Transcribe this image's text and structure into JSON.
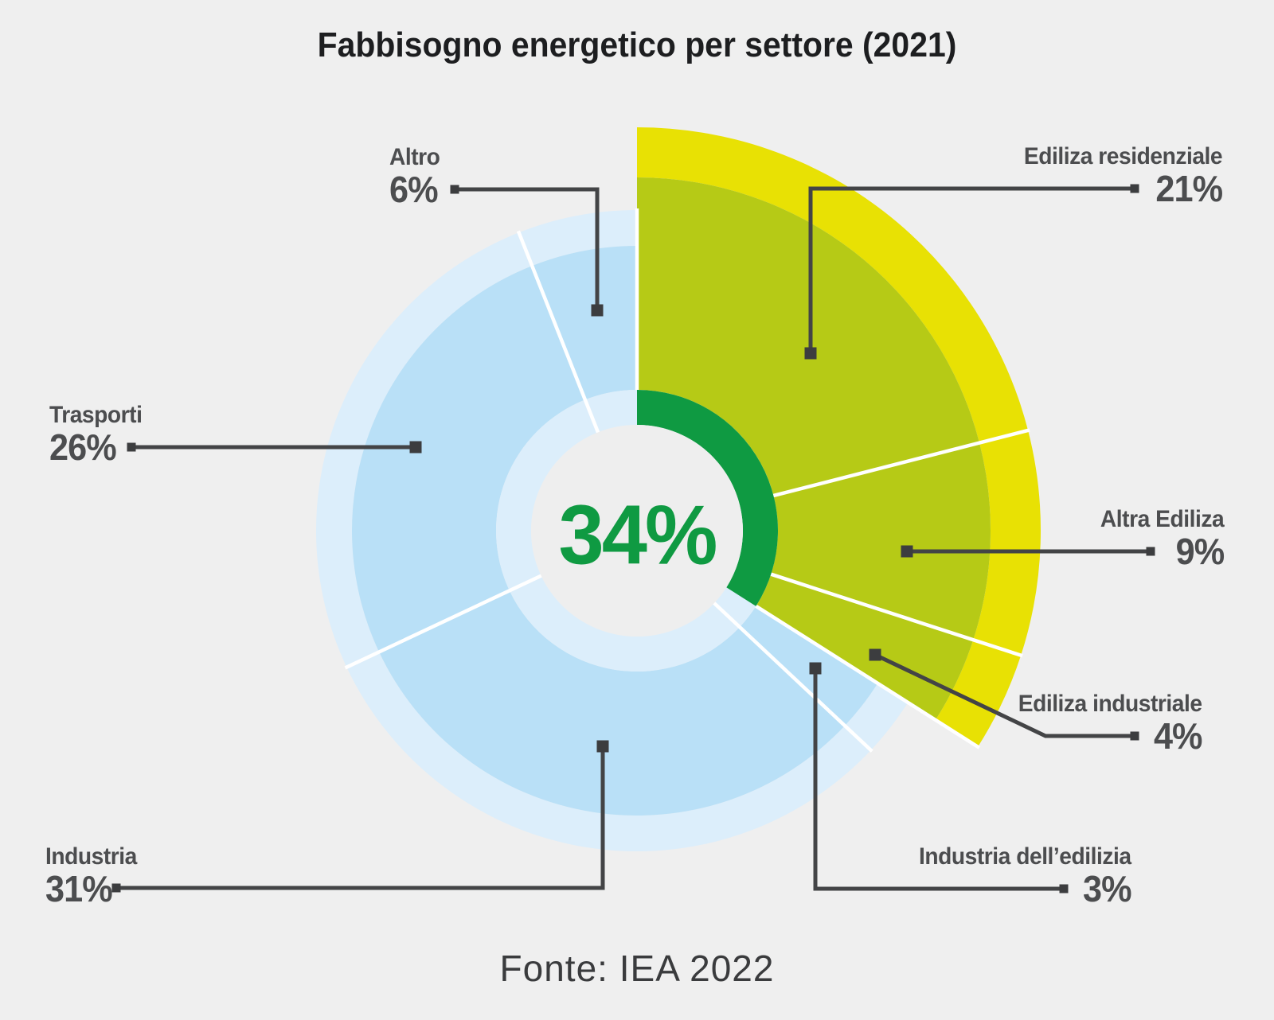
{
  "title": "Fabbisogno energetico per settore (2021)",
  "source": "Fonte: IEA 2022",
  "colors": {
    "background": "#efefef",
    "center_circle": "#eeeeee",
    "highlight_green": "#0f9a42",
    "edilizia_mid": "#b6ca16",
    "edilizia_outer": "#e8e104",
    "altri_mid": "#b9e0f7",
    "altri_pale": "#dceefb",
    "separator": "#ffffff",
    "title_text": "#1d1e20",
    "label_text": "#4c4d4f",
    "connector": "#434446",
    "source_text": "#3a3b3d"
  },
  "chart_data": {
    "type": "pie",
    "subtype": "sunburst-donut",
    "title": "Fabbisogno energetico per settore (2021)",
    "units": "%",
    "start_angle_deg": 0,
    "direction": "clockwise",
    "segments": [
      {
        "label": "Ediliza residenziale",
        "value": 21,
        "pct_label": "21%",
        "family": "edilizia"
      },
      {
        "label": "Altra Ediliza",
        "value": 9,
        "pct_label": "9%",
        "family": "edilizia"
      },
      {
        "label": "Ediliza industriale",
        "value": 4,
        "pct_label": "4%",
        "family": "edilizia"
      },
      {
        "label": "Industria dell’edilizia",
        "value": 3,
        "pct_label": "3%",
        "family": "altri"
      },
      {
        "label": "Industria",
        "value": 31,
        "pct_label": "31%",
        "family": "altri"
      },
      {
        "label": "Trasporti",
        "value": 26,
        "pct_label": "26%",
        "family": "altri"
      },
      {
        "label": "Altro",
        "value": 6,
        "pct_label": "6%",
        "family": "altri"
      }
    ],
    "highlight": {
      "pct_label": "34%",
      "value": 34,
      "covers_family": "edilizia"
    },
    "legend_position": "callouts",
    "grid": false
  }
}
